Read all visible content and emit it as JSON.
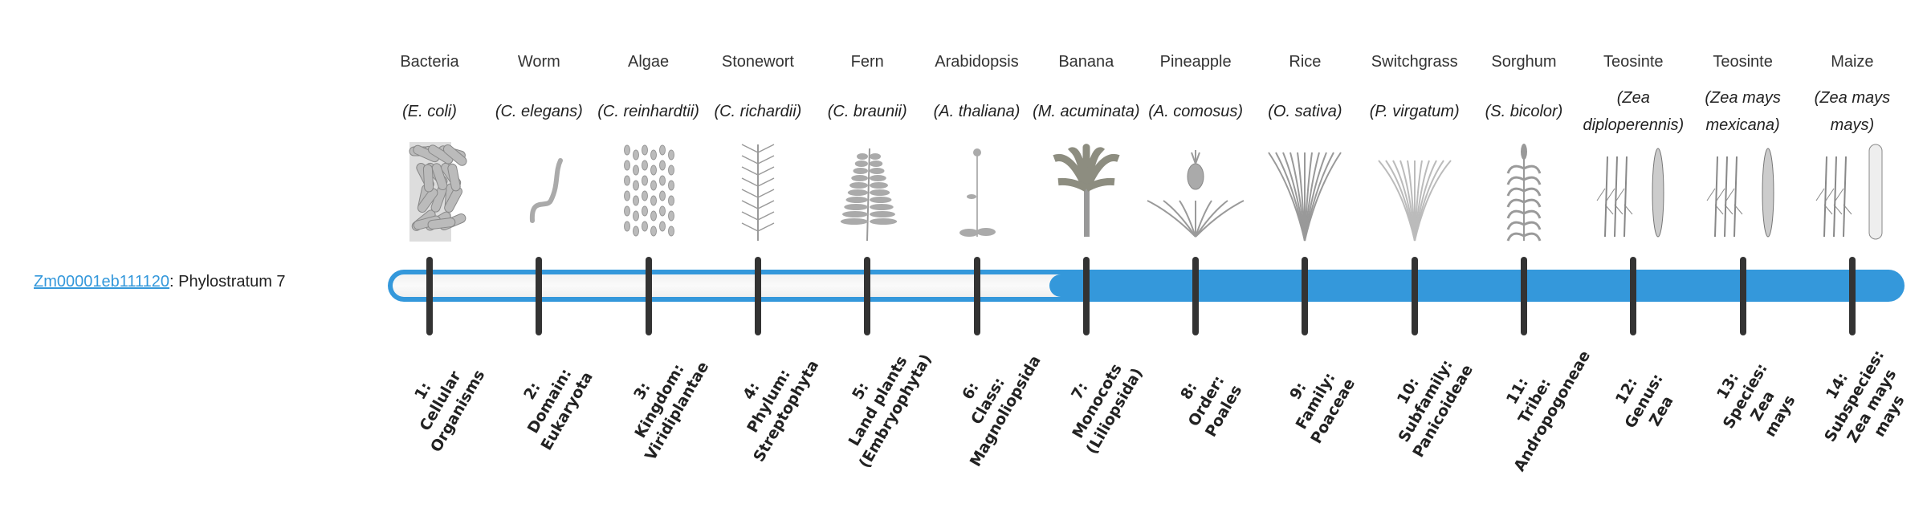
{
  "gene": {
    "id": "Zm00001eb111120",
    "suffix": ": Phylostratum 7",
    "phylostratum": 7
  },
  "colors": {
    "accent": "#3498db",
    "tick": "#333333",
    "empty": "#f5f5f5"
  },
  "strata": [
    {
      "common": "Bacteria",
      "scientific": "(E. coli)",
      "image": "bacteria-rods",
      "rank_lines": [
        "1:",
        "Cellular",
        "Organisms"
      ]
    },
    {
      "common": "Worm",
      "scientific": "(C. elegans)",
      "image": "worm",
      "rank_lines": [
        "2:",
        "Domain:",
        "Eukaryota"
      ]
    },
    {
      "common": "Algae",
      "scientific": "(C. reinhardtii)",
      "image": "algae-cells",
      "rank_lines": [
        "3:",
        "Kingdom:",
        "Viridiplantae"
      ]
    },
    {
      "common": "Stonewort",
      "scientific": "(C. richardii)",
      "image": "stonewort",
      "rank_lines": [
        "4:",
        "Phylum:",
        "Streptophyta"
      ]
    },
    {
      "common": "Fern",
      "scientific": "(C. braunii)",
      "image": "fern",
      "rank_lines": [
        "5:",
        "Land plants",
        "(Embryophyta)"
      ]
    },
    {
      "common": "Arabidopsis",
      "scientific": "(A. thaliana)",
      "image": "arabidopsis",
      "rank_lines": [
        "6:",
        "Class:",
        "Magnoliopsida"
      ]
    },
    {
      "common": "Banana",
      "scientific": "(M. acuminata)",
      "image": "banana-plant",
      "rank_lines": [
        "7:",
        "Monocots",
        "(Liliopsida)"
      ]
    },
    {
      "common": "Pineapple",
      "scientific": "(A. comosus)",
      "image": "pineapple",
      "rank_lines": [
        "8:",
        "Order:",
        "Poales"
      ]
    },
    {
      "common": "Rice",
      "scientific": "(O. sativa)",
      "image": "rice",
      "rank_lines": [
        "9:",
        "Family:",
        "Poaceae"
      ]
    },
    {
      "common": "Switchgrass",
      "scientific": "(P. virgatum)",
      "image": "switchgrass",
      "rank_lines": [
        "10:",
        "Subfamily:",
        "Panicoideae"
      ]
    },
    {
      "common": "Sorghum",
      "scientific": "(S. bicolor)",
      "image": "sorghum",
      "rank_lines": [
        "11:",
        "Tribe:",
        "Andropogoneae"
      ]
    },
    {
      "common": "Teosinte",
      "scientific": "(Zea diploperennis)",
      "image": "teosinte",
      "rank_lines": [
        "12:",
        "Genus:",
        "Zea"
      ]
    },
    {
      "common": "Teosinte",
      "scientific": "(Zea mays mexicana)",
      "image": "teosinte",
      "rank_lines": [
        "13:",
        "Species:",
        "Zea",
        "mays"
      ]
    },
    {
      "common": "Maize",
      "scientific": "(Zea mays mays)",
      "image": "maize",
      "rank_lines": [
        "14:",
        "Subspecies:",
        "Zea mays",
        "mays"
      ]
    }
  ]
}
